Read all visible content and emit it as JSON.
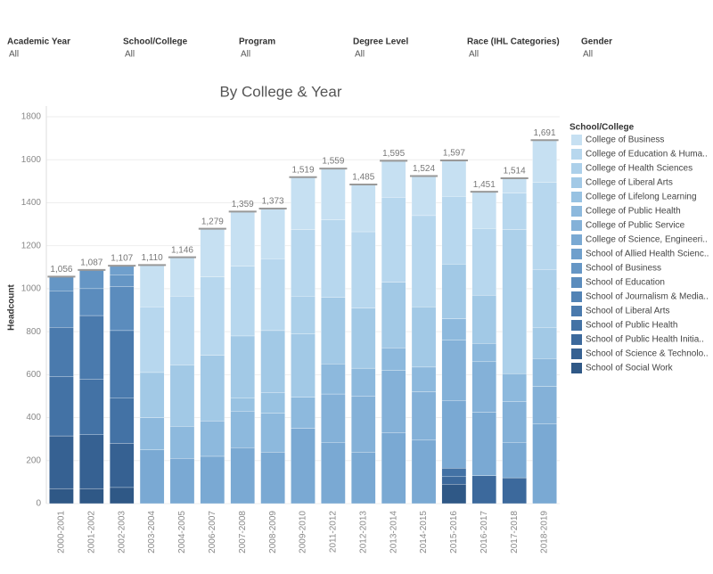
{
  "filters": [
    {
      "label": "Academic Year",
      "value": "All"
    },
    {
      "label": "School/College",
      "value": "All"
    },
    {
      "label": "Program",
      "value": "All"
    },
    {
      "label": "Degree Level",
      "value": "All"
    },
    {
      "label": "Race (IHL Categories)",
      "value": "All"
    },
    {
      "label": "Gender",
      "value": "All"
    }
  ],
  "chart_data": {
    "type": "stacked-bar",
    "title": "By College & Year",
    "y_label": "Headcount",
    "legend_title": "School/College",
    "legend": "right",
    "categories": [
      "2000-2001",
      "2001-2002",
      "2002-2003",
      "2003-2004",
      "2004-2005",
      "2006-2007",
      "2007-2008",
      "2008-2009",
      "2009-2010",
      "2011-2012",
      "2012-2013",
      "2013-2014",
      "2014-2015",
      "2015-2016",
      "2016-2017",
      "2017-2018",
      "2018-2019"
    ],
    "totals": [
      1056,
      1087,
      1107,
      1110,
      1146,
      1279,
      1359,
      1373,
      1519,
      1559,
      1485,
      1595,
      1524,
      1597,
      1451,
      1514,
      1691
    ],
    "total_labels": [
      "1,056",
      "1,087",
      "1,107",
      "1,110",
      "1,146",
      "1,279",
      "1,359",
      "1,373",
      "1,519",
      "1,559",
      "1,485",
      "1,595",
      "1,524",
      "1,597",
      "1,451",
      "1,514",
      "1,691"
    ],
    "ylim": [
      0,
      1800
    ],
    "yticks": [
      0,
      200,
      400,
      600,
      800,
      1000,
      1200,
      1400,
      1600,
      1800
    ],
    "grid": true,
    "series": [
      {
        "name": "College of Business",
        "color": "#c6e0f2",
        "values": [
          null,
          null,
          null,
          195,
          181,
          224,
          254,
          233,
          244,
          239,
          220,
          170,
          184,
          167,
          171,
          69,
          196
        ]
      },
      {
        "name": "College of Education & Huma..",
        "color": "#b7d7ee",
        "values": [
          null,
          null,
          null,
          305,
          320,
          365,
          325,
          335,
          310,
          360,
          355,
          395,
          425,
          315,
          310,
          170,
          405
        ]
      },
      {
        "name": "College of Health Sciences",
        "color": "#acd0ea",
        "values": [
          null,
          null,
          null,
          null,
          null,
          null,
          null,
          null,
          175,
          null,
          null,
          null,
          null,
          null,
          null,
          670,
          270
        ]
      },
      {
        "name": "College of Liberal Arts",
        "color": "#a2c9e6",
        "values": [
          null,
          null,
          null,
          210,
          285,
          305,
          290,
          290,
          295,
          310,
          280,
          305,
          280,
          255,
          225,
          null,
          145
        ]
      },
      {
        "name": "College of Lifelong Learning",
        "color": "#98c2e2",
        "values": [
          null,
          null,
          null,
          null,
          null,
          null,
          60,
          95,
          null,
          null,
          null,
          null,
          null,
          null,
          null,
          null,
          null
        ]
      },
      {
        "name": "College of Public Health",
        "color": "#8db9dd",
        "values": [
          null,
          null,
          null,
          150,
          150,
          165,
          170,
          180,
          145,
          140,
          130,
          105,
          115,
          100,
          85,
          130,
          130
        ]
      },
      {
        "name": "College of Public Service",
        "color": "#84b1d8",
        "values": [
          null,
          null,
          null,
          null,
          null,
          null,
          null,
          null,
          null,
          225,
          260,
          290,
          225,
          280,
          235,
          190,
          175
        ]
      },
      {
        "name": "College of Science, Engineeri..",
        "color": "#7aa9d3",
        "values": [
          null,
          null,
          null,
          250,
          210,
          220,
          260,
          240,
          350,
          285,
          240,
          330,
          295,
          315,
          295,
          165,
          370
        ]
      },
      {
        "name": "School of Allied Health Scienc..",
        "color": "#6f9fcc",
        "values": [
          null,
          null,
          42,
          null,
          null,
          null,
          null,
          null,
          null,
          null,
          null,
          null,
          null,
          null,
          null,
          null,
          null
        ]
      },
      {
        "name": "School of Business",
        "color": "#6596c5",
        "values": [
          66,
          87,
          55,
          null,
          null,
          null,
          null,
          null,
          null,
          null,
          null,
          null,
          null,
          null,
          null,
          null,
          null
        ]
      },
      {
        "name": "School of Education",
        "color": "#5b8cbd",
        "values": [
          170,
          125,
          205,
          null,
          null,
          null,
          null,
          null,
          null,
          null,
          null,
          null,
          null,
          null,
          null,
          null,
          null
        ]
      },
      {
        "name": "School of Journalism & Media..",
        "color": "#5283b5",
        "values": [
          null,
          null,
          null,
          null,
          null,
          null,
          null,
          null,
          null,
          null,
          null,
          null,
          null,
          null,
          null,
          null,
          null
        ]
      },
      {
        "name": "School of Liberal Arts",
        "color": "#4a7aad",
        "values": [
          230,
          295,
          315,
          null,
          null,
          null,
          null,
          null,
          null,
          null,
          null,
          null,
          null,
          null,
          null,
          null,
          null
        ]
      },
      {
        "name": "School of Public Health",
        "color": "#4372a5",
        "values": [
          275,
          260,
          210,
          null,
          null,
          null,
          null,
          null,
          null,
          null,
          null,
          null,
          null,
          40,
          null,
          null,
          null
        ]
      },
      {
        "name": "School of Public Health Initia..",
        "color": "#3c699c",
        "values": [
          null,
          null,
          null,
          null,
          null,
          null,
          null,
          null,
          null,
          null,
          null,
          null,
          null,
          35,
          130,
          120,
          null
        ]
      },
      {
        "name": "School of Science & Technolo..",
        "color": "#366192",
        "values": [
          245,
          250,
          205,
          null,
          null,
          null,
          null,
          null,
          null,
          null,
          null,
          null,
          null,
          null,
          null,
          null,
          null
        ]
      },
      {
        "name": "School of Social Work",
        "color": "#2f5886",
        "values": [
          70,
          70,
          75,
          null,
          null,
          null,
          null,
          null,
          null,
          null,
          null,
          null,
          null,
          90,
          null,
          null,
          null
        ]
      }
    ]
  }
}
